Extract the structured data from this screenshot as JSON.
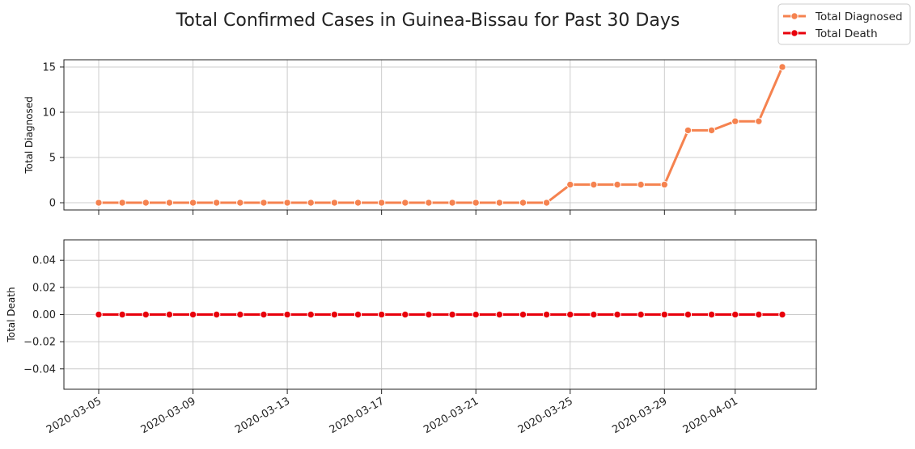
{
  "chart_data": {
    "title": "Total Confirmed Cases in Guinea-Bissau for Past 30 Days",
    "type": "line",
    "legend_position": "top-right",
    "x_tick_labels": [
      "2020-03-05",
      "2020-03-09",
      "2020-03-13",
      "2020-03-17",
      "2020-03-21",
      "2020-03-25",
      "2020-03-29",
      "2020-04-01"
    ],
    "x": [
      "2020-03-05",
      "2020-03-06",
      "2020-03-07",
      "2020-03-08",
      "2020-03-09",
      "2020-03-10",
      "2020-03-11",
      "2020-03-12",
      "2020-03-13",
      "2020-03-14",
      "2020-03-15",
      "2020-03-16",
      "2020-03-17",
      "2020-03-18",
      "2020-03-19",
      "2020-03-20",
      "2020-03-21",
      "2020-03-22",
      "2020-03-23",
      "2020-03-24",
      "2020-03-25",
      "2020-03-26",
      "2020-03-27",
      "2020-03-28",
      "2020-03-29",
      "2020-03-30",
      "2020-03-31",
      "2020-04-01",
      "2020-04-02",
      "2020-04-03"
    ],
    "panels": [
      {
        "ylabel": "Total Diagnosed",
        "ylim": [
          -0.8,
          15.8
        ],
        "yticks": [
          0,
          5,
          10,
          15
        ],
        "ytick_labels": [
          "0",
          "5",
          "10",
          "15"
        ],
        "grid": true,
        "series": {
          "name": "Total Diagnosed",
          "color": "#F5824F",
          "values": [
            0,
            0,
            0,
            0,
            0,
            0,
            0,
            0,
            0,
            0,
            0,
            0,
            0,
            0,
            0,
            0,
            0,
            0,
            0,
            0,
            2,
            2,
            2,
            2,
            2,
            8,
            8,
            9,
            9,
            15
          ]
        }
      },
      {
        "ylabel": "Total Death",
        "ylim": [
          -0.055,
          0.055
        ],
        "yticks": [
          -0.04,
          -0.02,
          0,
          0.02,
          0.04
        ],
        "ytick_labels": [
          "−0.04",
          "−0.02",
          "0.00",
          "0.02",
          "0.04"
        ],
        "grid": true,
        "series": {
          "name": "Total Death",
          "color": "#E8000B",
          "values": [
            0,
            0,
            0,
            0,
            0,
            0,
            0,
            0,
            0,
            0,
            0,
            0,
            0,
            0,
            0,
            0,
            0,
            0,
            0,
            0,
            0,
            0,
            0,
            0,
            0,
            0,
            0,
            0,
            0,
            0
          ]
        }
      }
    ]
  }
}
